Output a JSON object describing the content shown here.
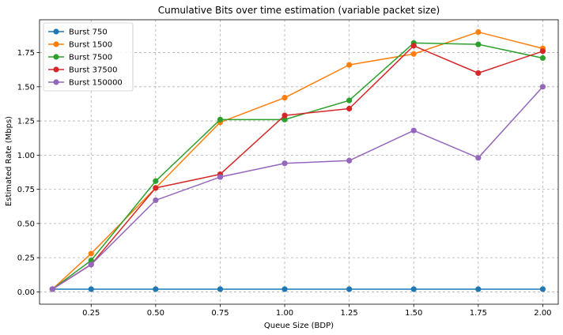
{
  "chart_data": {
    "type": "line",
    "title": "Cumulative Bits over time estimation (variable packet size)",
    "xlabel": "Queue Size (BDP)",
    "ylabel": "Estimated Rate (Mbps)",
    "xlim": [
      0.05,
      2.06
    ],
    "ylim": [
      -0.09,
      1.99
    ],
    "xticks": [
      0.25,
      0.5,
      0.75,
      1.0,
      1.25,
      1.5,
      1.75,
      2.0
    ],
    "xtick_labels": [
      "0.25",
      "0.50",
      "0.75",
      "1.00",
      "1.25",
      "1.50",
      "1.75",
      "2.00"
    ],
    "yticks": [
      0.0,
      0.25,
      0.5,
      0.75,
      1.0,
      1.25,
      1.5,
      1.75
    ],
    "ytick_labels": [
      "0.00",
      "0.25",
      "0.50",
      "0.75",
      "1.00",
      "1.25",
      "1.50",
      "1.75"
    ],
    "grid": true,
    "legend_position": "top-left",
    "x": [
      0.1,
      0.25,
      0.5,
      0.75,
      1.0,
      1.25,
      1.5,
      1.75,
      2.0
    ],
    "series": [
      {
        "name": "Burst 750",
        "color": "#1f77b4",
        "values": [
          0.02,
          0.02,
          0.02,
          0.02,
          0.02,
          0.02,
          0.02,
          0.02,
          0.02
        ]
      },
      {
        "name": "Burst 1500",
        "color": "#ff7f0e",
        "values": [
          0.02,
          0.28,
          0.76,
          1.24,
          1.42,
          1.66,
          1.74,
          1.9,
          1.78
        ]
      },
      {
        "name": "Burst 7500",
        "color": "#2ca02c",
        "values": [
          0.02,
          0.23,
          0.81,
          1.26,
          1.26,
          1.4,
          1.82,
          1.81,
          1.71
        ]
      },
      {
        "name": "Burst 37500",
        "color": "#d62728",
        "values": [
          0.02,
          0.2,
          0.76,
          0.86,
          1.29,
          1.34,
          1.8,
          1.6,
          1.76
        ]
      },
      {
        "name": "Burst 150000",
        "color": "#9467bd",
        "values": [
          0.02,
          0.2,
          0.67,
          0.84,
          0.94,
          0.96,
          1.18,
          0.98,
          1.5
        ]
      }
    ]
  }
}
